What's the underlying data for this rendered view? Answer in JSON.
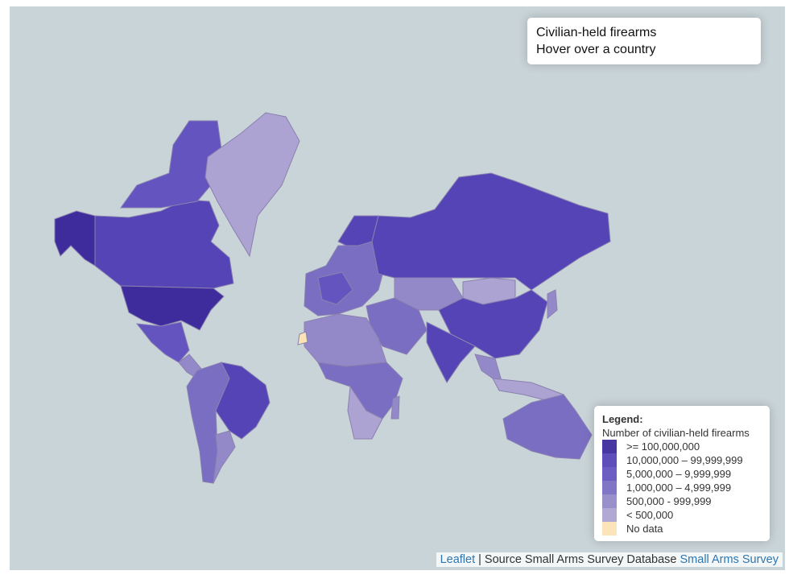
{
  "info": {
    "title": "Civilian-held firearms",
    "hint": "Hover over a country"
  },
  "legend": {
    "heading": "Legend:",
    "subtitle": "Number of civilian-held firearms",
    "items": [
      {
        "label": ">= 100,000,000",
        "color": "#3e2c9c"
      },
      {
        "label": "10,000,000 – 99,999,999",
        "color": "#5444b5"
      },
      {
        "label": "5,000,000 – 9,999,999",
        "color": "#6454c0"
      },
      {
        "label": "1,000,000 – 4,999,999",
        "color": "#7a6ec3"
      },
      {
        "label": "500,000 - 999,999",
        "color": "#9489c8"
      },
      {
        "label": "< 500,000",
        "color": "#ada3d2"
      },
      {
        "label": "No data",
        "color": "#fbe3b6"
      }
    ]
  },
  "attribution": {
    "leaflet": "Leaflet",
    "separator": "| Source Small Arms Survey Database",
    "link": "Small Arms Survey"
  }
}
